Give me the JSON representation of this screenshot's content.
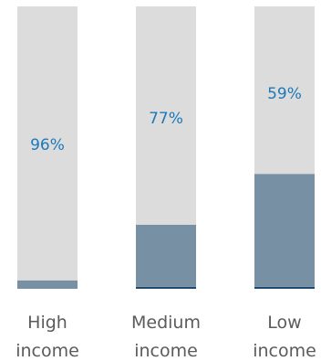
{
  "chart_data": {
    "type": "bar",
    "stacked": true,
    "categories": [
      {
        "line1": "High",
        "line2": "income"
      },
      {
        "line1": "Medium",
        "line2": "income"
      },
      {
        "line1": "Low",
        "line2": "income"
      }
    ],
    "series": [
      {
        "values": [
          96,
          77,
          59
        ],
        "labels": [
          "96%",
          "77%",
          "59%"
        ],
        "color": "#dcdcdc"
      },
      {
        "values": [
          3,
          22,
          40
        ],
        "color": "#7890a4"
      },
      {
        "values": [
          0,
          0.7,
          0.7
        ],
        "color": "#1e4a70"
      }
    ],
    "ylim": [
      0,
      100
    ],
    "grid": false,
    "legend": "none"
  }
}
